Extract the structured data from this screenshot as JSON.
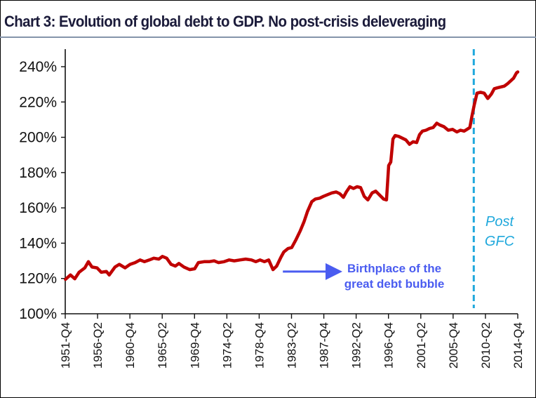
{
  "chart_data": {
    "type": "line",
    "title": "Chart 3: Evolution of global debt to GDP. No post-crisis deleveraging",
    "xlabel": "",
    "ylabel": "",
    "ylim": [
      100,
      245
    ],
    "xlim": [
      1951.875,
      2014.875
    ],
    "y_ticks": [
      100,
      120,
      140,
      160,
      180,
      200,
      220,
      240
    ],
    "y_tick_labels": [
      "100%",
      "120%",
      "140%",
      "160%",
      "180%",
      "200%",
      "220%",
      "240%"
    ],
    "x_ticks": [
      1951.875,
      1956.375,
      1960.875,
      1965.375,
      1969.875,
      1974.375,
      1978.875,
      1983.375,
      1987.875,
      1992.375,
      1996.875,
      2001.375,
      2005.875,
      2010.375,
      2014.875
    ],
    "x_tick_labels": [
      "1951-Q4",
      "1956-Q2",
      "1960-Q4",
      "1965-Q2",
      "1969-Q4",
      "1974-Q2",
      "1978-Q4",
      "1983-Q2",
      "1987-Q4",
      "1992-Q2",
      "1996-Q4",
      "2001-Q2",
      "2005-Q4",
      "2010-Q2",
      "2014-Q4"
    ],
    "grid": false,
    "series": [
      {
        "name": "Global debt to GDP",
        "color": "#c00000",
        "x": [
          1951.9,
          1952.6,
          1953.2,
          1953.8,
          1954.6,
          1955.1,
          1955.6,
          1956.3,
          1956.9,
          1957.6,
          1958.0,
          1958.8,
          1959.4,
          1960.2,
          1960.9,
          1961.6,
          1962.3,
          1962.9,
          1963.6,
          1964.2,
          1964.9,
          1965.4,
          1966.0,
          1966.6,
          1967.2,
          1967.7,
          1968.4,
          1969.2,
          1969.9,
          1970.4,
          1971.2,
          1971.9,
          1972.6,
          1973.2,
          1974.0,
          1974.7,
          1975.4,
          1976.2,
          1977.0,
          1977.8,
          1978.4,
          1979.0,
          1979.6,
          1980.2,
          1980.8,
          1981.3,
          1981.9,
          1982.3,
          1982.9,
          1983.4,
          1984.0,
          1984.6,
          1985.1,
          1985.6,
          1986.2,
          1986.7,
          1987.3,
          1987.8,
          1988.4,
          1989.0,
          1989.6,
          1990.1,
          1990.6,
          1991.0,
          1991.5,
          1992.0,
          1992.5,
          1993.0,
          1993.5,
          1994.0,
          1994.6,
          1995.1,
          1995.7,
          1996.2,
          1996.6,
          1996.9,
          1997.2,
          1997.5,
          1997.8,
          1998.3,
          1998.8,
          1999.3,
          1999.8,
          2000.3,
          2000.8,
          2001.2,
          2001.6,
          2002.1,
          2002.6,
          2003.1,
          2003.6,
          2004.0,
          2004.6,
          2005.2,
          2005.8,
          2006.4,
          2006.9,
          2007.4,
          2007.8,
          2008.2,
          2008.5,
          2008.8,
          2009.2,
          2009.7,
          2010.2,
          2010.7,
          2011.2,
          2011.6,
          2012.0,
          2012.5,
          2013.0,
          2013.5,
          2013.9,
          2014.3,
          2014.7,
          2014.875
        ],
        "values": [
          119.5,
          122.0,
          119.8,
          123.5,
          126.0,
          129.5,
          126.5,
          126.0,
          123.5,
          124.0,
          122.0,
          126.5,
          128.0,
          126.0,
          128.0,
          129.0,
          130.5,
          129.5,
          130.5,
          131.5,
          131.0,
          132.5,
          131.5,
          128.0,
          127.0,
          128.5,
          126.5,
          125.0,
          125.5,
          129.0,
          129.5,
          129.5,
          130.0,
          129.0,
          129.5,
          130.5,
          130.0,
          130.5,
          131.0,
          130.5,
          129.5,
          130.5,
          129.5,
          130.5,
          125.0,
          127.0,
          132.0,
          135.0,
          137.0,
          137.5,
          142.0,
          147.0,
          152.0,
          158.0,
          163.5,
          165.0,
          165.5,
          166.5,
          167.5,
          168.5,
          169.0,
          168.0,
          166.0,
          169.0,
          172.0,
          171.0,
          172.0,
          171.5,
          166.5,
          164.5,
          168.5,
          169.5,
          167.0,
          165.0,
          164.5,
          184.0,
          186.0,
          199.0,
          201.0,
          200.5,
          199.5,
          198.5,
          196.0,
          197.5,
          197.0,
          201.5,
          203.5,
          204.0,
          205.0,
          205.5,
          208.0,
          207.0,
          206.0,
          204.0,
          204.5,
          203.0,
          204.0,
          203.5,
          204.5,
          205.5,
          212.0,
          218.0,
          225.0,
          225.5,
          225.0,
          222.0,
          224.5,
          227.5,
          228.0,
          228.5,
          229.0,
          230.5,
          232.0,
          233.5,
          236.5,
          237.0
        ]
      }
    ],
    "reference_lines": [
      {
        "type": "vertical",
        "x": 2008.75,
        "style": "dashed",
        "color": "#1fa8dc",
        "label": [
          "Post",
          "GFC"
        ]
      }
    ],
    "annotations": [
      {
        "text": [
          "Birthplace of the",
          "great debt bubble"
        ],
        "color": "#4a5cf0",
        "arrow_to": {
          "x": 1981.0,
          "y": 125.5
        }
      }
    ],
    "legend": "none"
  }
}
